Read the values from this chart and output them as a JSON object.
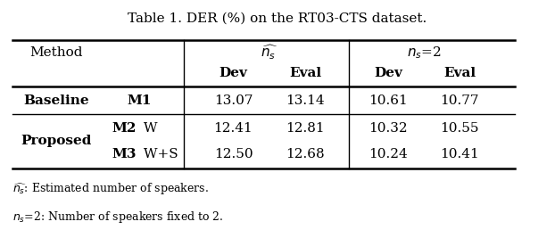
{
  "title": "Table 1. DER (%) on the RT03-CTS dataset.",
  "col_header_row1": [
    "Method",
    "",
    "$\\widehat{n_s}$",
    "",
    "$n_s$=2",
    ""
  ],
  "col_header_row2": [
    "",
    "",
    "Dev",
    "Eval",
    "Dev",
    "Eval"
  ],
  "rows": [
    {
      "group": "Baseline",
      "model": "M1",
      "ns_dev": "13.07",
      "ns_eval": "13.14",
      "n2_dev": "10.61",
      "n2_eval": "10.77"
    },
    {
      "group": "Proposed",
      "model": "M2 W",
      "ns_dev": "12.41",
      "ns_eval": "12.81",
      "n2_dev": "10.32",
      "n2_eval": "10.55"
    },
    {
      "group": "Proposed",
      "model": "M3 W+S",
      "ns_dev": "12.50",
      "ns_eval": "12.68",
      "n2_dev": "10.24",
      "n2_eval": "10.41"
    }
  ],
  "footnotes": [
    "$\\widehat{n_s}$: Estimated number of speakers.",
    "$n_s$=2: Number of speakers fixed to 2."
  ],
  "bg_color": "white",
  "font_size": 11
}
